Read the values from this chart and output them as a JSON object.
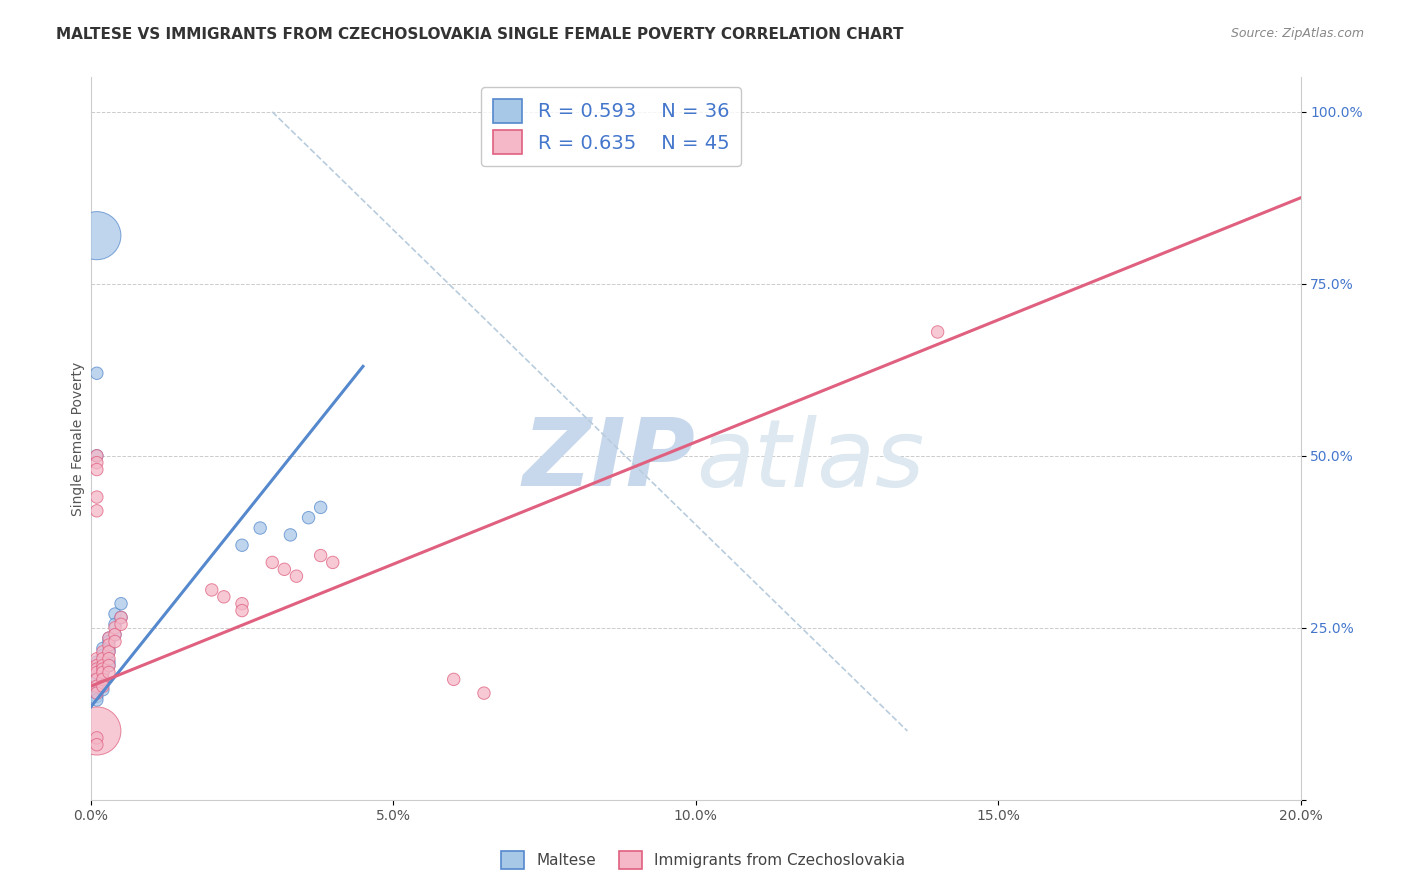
{
  "title": "MALTESE VS IMMIGRANTS FROM CZECHOSLOVAKIA SINGLE FEMALE POVERTY CORRELATION CHART",
  "source": "Source: ZipAtlas.com",
  "ylabel_label": "Single Female Poverty",
  "xlim": [
    0.0,
    0.2
  ],
  "ylim": [
    0.0,
    1.05
  ],
  "xticks": [
    0.0,
    0.05,
    0.1,
    0.15,
    0.2
  ],
  "xtick_labels": [
    "0.0%",
    "5.0%",
    "10.0%",
    "15.0%",
    "20.0%"
  ],
  "yticks": [
    0.0,
    0.25,
    0.5,
    0.75,
    1.0
  ],
  "ytick_labels": [
    "",
    "25.0%",
    "50.0%",
    "75.0%",
    "100.0%"
  ],
  "blue_fill": "#a8c8e8",
  "pink_fill": "#f4b8c8",
  "blue_edge": "#5588cc",
  "pink_edge": "#e06080",
  "ref_line_color": "#b8ccdd",
  "watermark_zip": "ZIP",
  "watermark_atlas": "atlas",
  "legend_r_blue": "R = 0.593",
  "legend_n_blue": "N = 36",
  "legend_r_pink": "R = 0.635",
  "legend_n_pink": "N = 45",
  "blue_scatter_x": [
    0.001,
    0.001,
    0.001,
    0.001,
    0.001,
    0.001,
    0.001,
    0.001,
    0.002,
    0.002,
    0.002,
    0.002,
    0.002,
    0.002,
    0.002,
    0.002,
    0.002,
    0.003,
    0.003,
    0.003,
    0.003,
    0.003,
    0.003,
    0.004,
    0.004,
    0.004,
    0.005,
    0.005,
    0.025,
    0.028,
    0.033,
    0.036,
    0.038,
    0.001,
    0.001,
    0.001
  ],
  "blue_scatter_y": [
    0.2,
    0.19,
    0.185,
    0.175,
    0.16,
    0.155,
    0.15,
    0.145,
    0.22,
    0.21,
    0.2,
    0.195,
    0.19,
    0.185,
    0.175,
    0.17,
    0.16,
    0.235,
    0.23,
    0.22,
    0.215,
    0.2,
    0.195,
    0.27,
    0.255,
    0.24,
    0.285,
    0.265,
    0.37,
    0.395,
    0.385,
    0.41,
    0.425,
    0.62,
    0.82,
    0.5
  ],
  "blue_scatter_sizes": [
    80,
    80,
    80,
    80,
    80,
    80,
    80,
    80,
    80,
    80,
    80,
    80,
    80,
    80,
    80,
    80,
    80,
    80,
    80,
    80,
    80,
    80,
    80,
    80,
    80,
    80,
    80,
    80,
    80,
    80,
    80,
    80,
    80,
    80,
    1200,
    80
  ],
  "pink_scatter_x": [
    0.001,
    0.001,
    0.001,
    0.001,
    0.001,
    0.001,
    0.001,
    0.002,
    0.002,
    0.002,
    0.002,
    0.002,
    0.002,
    0.002,
    0.003,
    0.003,
    0.003,
    0.003,
    0.003,
    0.003,
    0.004,
    0.004,
    0.004,
    0.005,
    0.005,
    0.02,
    0.022,
    0.025,
    0.025,
    0.03,
    0.032,
    0.034,
    0.038,
    0.04,
    0.14,
    0.001,
    0.001,
    0.001,
    0.001,
    0.001,
    0.06,
    0.065,
    0.001,
    0.001,
    0.001
  ],
  "pink_scatter_y": [
    0.205,
    0.195,
    0.19,
    0.185,
    0.175,
    0.165,
    0.155,
    0.215,
    0.205,
    0.195,
    0.19,
    0.185,
    0.175,
    0.165,
    0.235,
    0.225,
    0.215,
    0.205,
    0.195,
    0.185,
    0.25,
    0.24,
    0.23,
    0.265,
    0.255,
    0.305,
    0.295,
    0.285,
    0.275,
    0.345,
    0.335,
    0.325,
    0.355,
    0.345,
    0.68,
    0.5,
    0.49,
    0.48,
    0.44,
    0.42,
    0.175,
    0.155,
    0.1,
    0.09,
    0.08
  ],
  "pink_scatter_sizes": [
    80,
    80,
    80,
    80,
    80,
    80,
    80,
    80,
    80,
    80,
    80,
    80,
    80,
    80,
    80,
    80,
    80,
    80,
    80,
    80,
    80,
    80,
    80,
    80,
    80,
    80,
    80,
    80,
    80,
    80,
    80,
    80,
    80,
    80,
    80,
    80,
    80,
    80,
    80,
    80,
    80,
    80,
    1200,
    80,
    80
  ],
  "blue_line_x": [
    0.0,
    0.045
  ],
  "blue_line_y": [
    0.135,
    0.63
  ],
  "pink_line_x": [
    0.0,
    0.2
  ],
  "pink_line_y": [
    0.165,
    0.875
  ],
  "ref_line_x": [
    0.03,
    0.135
  ],
  "ref_line_y": [
    1.0,
    0.1
  ],
  "grid_color": "#cccccc",
  "background_color": "#ffffff",
  "title_fontsize": 11,
  "axis_fontsize": 10,
  "tick_fontsize": 10,
  "watermark_color": "#c8d8ec",
  "watermark_fontsize": 68,
  "legend_text_color": "#4477cc"
}
